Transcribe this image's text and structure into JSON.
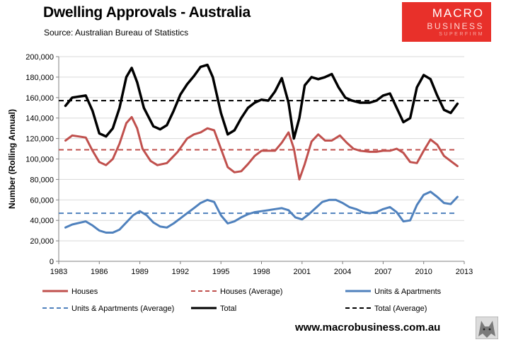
{
  "header": {
    "title": "Dwelling Approvals - Australia",
    "subtitle": "Source: Australian Bureau of Statistics"
  },
  "logo": {
    "line1": "MACRO",
    "line2": "BUSINESS",
    "line3": "SUPERFIRM",
    "color": "#e8302a"
  },
  "footer": {
    "url": "www.macrobusiness.com.au"
  },
  "chart_data": {
    "type": "line",
    "title": "Dwelling Approvals - Australia",
    "xlabel": "",
    "ylabel": "Number (Rolling Annual)",
    "xlim": [
      1983,
      2013
    ],
    "ylim": [
      0,
      200000
    ],
    "xticks": [
      "1983",
      "1986",
      "1989",
      "1992",
      "1995",
      "1998",
      "2001",
      "2004",
      "2007",
      "2010",
      "2013"
    ],
    "yticks": [
      "0",
      "20,000",
      "40,000",
      "60,000",
      "80,000",
      "100,000",
      "120,000",
      "140,000",
      "160,000",
      "180,000",
      "200,000"
    ],
    "grid": true,
    "legend_position": "bottom",
    "series": [
      {
        "name": "Houses",
        "color": "#c0504d",
        "style": "solid",
        "x": [
          1983.5,
          1984,
          1985,
          1985.5,
          1986,
          1986.5,
          1987,
          1987.5,
          1988,
          1988.4,
          1988.8,
          1989.2,
          1989.8,
          1990.3,
          1991,
          1991.8,
          1992.5,
          1993,
          1993.5,
          1994,
          1994.5,
          1995,
          1995.5,
          1996,
          1996.5,
          1997,
          1997.5,
          1998,
          1998.5,
          1999,
          1999.5,
          2000,
          2000.4,
          2000.8,
          2001.2,
          2001.7,
          2002.2,
          2002.7,
          2003.2,
          2003.8,
          2004.3,
          2004.8,
          2005.3,
          2006,
          2006.5,
          2007,
          2007.5,
          2008,
          2008.5,
          2009,
          2009.5,
          2010,
          2010.5,
          2011,
          2011.5,
          2012,
          2012.5
        ],
        "y": [
          118000,
          123000,
          121000,
          108000,
          97000,
          94000,
          100000,
          115000,
          135000,
          141000,
          130000,
          110000,
          98000,
          94000,
          96000,
          107000,
          120000,
          124000,
          126000,
          130000,
          128000,
          110000,
          92000,
          87000,
          88000,
          95000,
          103000,
          108000,
          108000,
          108000,
          116000,
          126000,
          110000,
          80000,
          95000,
          117000,
          124000,
          118000,
          118000,
          123000,
          116000,
          110000,
          108000,
          107000,
          107000,
          108000,
          108000,
          110000,
          106000,
          97000,
          96000,
          108000,
          119000,
          114000,
          103000,
          98000,
          93000
        ]
      },
      {
        "name": "Houses (Average)",
        "color": "#c0504d",
        "style": "dashed",
        "x": [
          1983,
          2012.5
        ],
        "y": [
          109000,
          109000
        ]
      },
      {
        "name": "Units & Apartments",
        "color": "#4f81bd",
        "style": "solid",
        "x": [
          1983.5,
          1984,
          1985,
          1985.5,
          1986,
          1986.5,
          1987,
          1987.5,
          1988,
          1988.5,
          1989,
          1989.5,
          1990,
          1990.5,
          1991,
          1991.5,
          1992,
          1992.5,
          1993,
          1993.5,
          1994,
          1994.5,
          1995,
          1995.5,
          1996,
          1996.5,
          1997,
          1997.5,
          1998,
          1998.5,
          1999,
          1999.5,
          2000,
          2000.5,
          2001,
          2001.5,
          2002,
          2002.5,
          2003,
          2003.5,
          2004,
          2004.5,
          2005,
          2005.5,
          2006,
          2006.5,
          2007,
          2007.5,
          2008,
          2008.5,
          2009,
          2009.5,
          2010,
          2010.5,
          2011,
          2011.5,
          2012,
          2012.5
        ],
        "y": [
          33000,
          36000,
          39000,
          35000,
          30000,
          28000,
          28000,
          31000,
          38000,
          45000,
          49000,
          45000,
          38000,
          34000,
          33000,
          37000,
          42000,
          47000,
          52000,
          57000,
          60000,
          58000,
          45000,
          37000,
          39000,
          43000,
          46000,
          48000,
          49000,
          50000,
          51000,
          52000,
          50000,
          43000,
          41000,
          46000,
          52000,
          58000,
          60000,
          60000,
          57000,
          53000,
          51000,
          48000,
          47000,
          48000,
          51000,
          53000,
          48000,
          39000,
          40000,
          55000,
          65000,
          68000,
          63000,
          57000,
          56000,
          63000
        ]
      },
      {
        "name": "Units & Apartments (Average)",
        "color": "#4f81bd",
        "style": "dashed",
        "x": [
          1983,
          2012.5
        ],
        "y": [
          47000,
          47000
        ]
      },
      {
        "name": "Total",
        "color": "#000000",
        "style": "solid",
        "x": [
          1983.5,
          1984,
          1985,
          1985.5,
          1986,
          1986.5,
          1987,
          1987.5,
          1988,
          1988.4,
          1988.8,
          1989.3,
          1990,
          1990.5,
          1991,
          1991.5,
          1992,
          1992.5,
          1993,
          1993.5,
          1994,
          1994.4,
          1995,
          1995.5,
          1996,
          1996.5,
          1997,
          1997.5,
          1998,
          1998.5,
          1999,
          1999.5,
          2000,
          2000.4,
          2000.8,
          2001.2,
          2001.7,
          2002.2,
          2002.7,
          2003.2,
          2003.7,
          2004.2,
          2004.7,
          2005.3,
          2006,
          2006.5,
          2007,
          2007.5,
          2008,
          2008.5,
          2009,
          2009.5,
          2010,
          2010.5,
          2011,
          2011.5,
          2012,
          2012.5
        ],
        "y": [
          152000,
          160000,
          162000,
          147000,
          125000,
          122000,
          130000,
          150000,
          180000,
          189000,
          175000,
          150000,
          132000,
          129000,
          133000,
          147000,
          163000,
          173000,
          181000,
          190000,
          192000,
          180000,
          145000,
          124000,
          128000,
          140000,
          150000,
          155000,
          158000,
          157000,
          166000,
          179000,
          155000,
          120000,
          140000,
          172000,
          180000,
          178000,
          180000,
          183000,
          170000,
          160000,
          157000,
          155000,
          155000,
          157000,
          162000,
          164000,
          150000,
          136000,
          140000,
          170000,
          182000,
          178000,
          162000,
          148000,
          145000,
          154000
        ]
      },
      {
        "name": "Total (Average)",
        "color": "#000000",
        "style": "dashed",
        "x": [
          1983,
          2012.5
        ],
        "y": [
          157000,
          157000
        ]
      }
    ]
  }
}
